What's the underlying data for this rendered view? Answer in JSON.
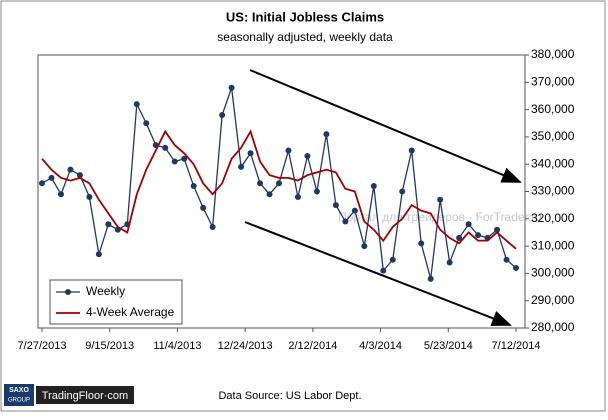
{
  "chart_data": {
    "type": "line",
    "title": "US: Initial Jobless Claims",
    "subtitle": "seasonally  adjusted,  weekly data",
    "annotation": "Портал для трейдеров - ForTrader.ru",
    "source": "Data Source: US Labor Dept.",
    "logo": {
      "group": "SAXO",
      "group_sub": "GROUP",
      "brand": "TradingFloor·com"
    },
    "x": [
      0,
      7,
      14,
      21,
      28,
      35,
      42,
      49,
      56,
      63,
      70,
      77,
      84,
      91,
      98,
      105,
      112,
      119,
      126,
      133,
      140,
      147,
      154,
      161,
      168,
      175,
      182,
      189,
      196,
      203,
      210,
      217,
      224,
      231,
      238,
      245,
      252,
      259,
      266,
      273,
      280,
      287,
      294,
      301,
      308,
      315,
      322,
      329,
      336,
      343,
      350
    ],
    "xlim": [
      0,
      350
    ],
    "xticks": [
      {
        "value": 0,
        "label": "7/27/2013"
      },
      {
        "value": 50,
        "label": "9/15/2013"
      },
      {
        "value": 100,
        "label": "11/4/2013"
      },
      {
        "value": 150,
        "label": "12/24/2013"
      },
      {
        "value": 200,
        "label": "2/12/2014"
      },
      {
        "value": 250,
        "label": "4/3/2014"
      },
      {
        "value": 300,
        "label": "5/23/2014"
      },
      {
        "value": 350,
        "label": "7/12/2014"
      }
    ],
    "ylim": [
      280000,
      380000
    ],
    "yticks": [
      {
        "value": 280000,
        "label": "280,000"
      },
      {
        "value": 290000,
        "label": "290,000"
      },
      {
        "value": 300000,
        "label": "300,000"
      },
      {
        "value": 310000,
        "label": "310,000"
      },
      {
        "value": 320000,
        "label": "320,000"
      },
      {
        "value": 330000,
        "label": "330,000"
      },
      {
        "value": 340000,
        "label": "340,000"
      },
      {
        "value": 350000,
        "label": "350,000"
      },
      {
        "value": 360000,
        "label": "360,000"
      },
      {
        "value": 370000,
        "label": "370,000"
      },
      {
        "value": 380000,
        "label": "380,000"
      }
    ],
    "legend": "lower left",
    "series": [
      {
        "name": "Weekly",
        "color": "#1f3864",
        "markers": true,
        "values": [
          333000,
          335000,
          329000,
          338000,
          336000,
          328000,
          307000,
          318000,
          316000,
          318000,
          362000,
          355000,
          347000,
          346000,
          341000,
          342000,
          332000,
          324000,
          317000,
          358000,
          368000,
          339000,
          344000,
          333000,
          329000,
          333000,
          345000,
          328000,
          343000,
          330000,
          351000,
          325000,
          319000,
          323000,
          310000,
          332000,
          301000,
          305000,
          330000,
          345000,
          311000,
          298000,
          327000,
          304000,
          313000,
          318000,
          314000,
          313000,
          316000,
          305000,
          302000
        ]
      },
      {
        "name": "4-Week Average",
        "color": "#a00000",
        "markers": false,
        "values": [
          342000,
          338000,
          335000,
          334000,
          335000,
          333000,
          327000,
          322000,
          317000,
          315000,
          329000,
          338000,
          345000,
          352000,
          347000,
          344000,
          340000,
          333000,
          329000,
          333000,
          342000,
          346000,
          352000,
          341000,
          336000,
          335000,
          335000,
          334000,
          336000,
          337000,
          338000,
          337000,
          331000,
          330000,
          319000,
          316000,
          312000,
          317000,
          320000,
          325000,
          323000,
          322000,
          316000,
          313000,
          311000,
          315000,
          312000,
          312000,
          315000,
          312000,
          309000
        ]
      }
    ]
  }
}
